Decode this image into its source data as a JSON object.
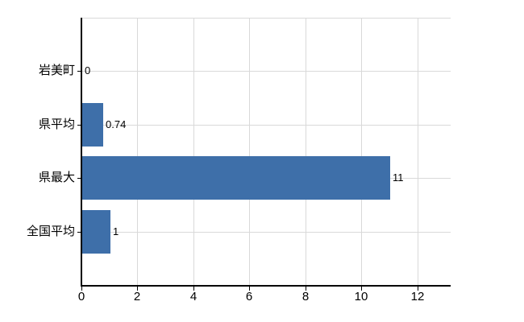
{
  "chart_data": {
    "type": "bar",
    "orientation": "horizontal",
    "title": "",
    "xlabel": "",
    "ylabel": "",
    "categories": [
      "岩美町",
      "県平均",
      "県最大",
      "全国平均"
    ],
    "values": [
      0,
      0.74,
      11,
      1
    ],
    "value_labels": [
      "0",
      "0.74",
      "11",
      "1"
    ],
    "xticks": [
      0,
      2,
      4,
      6,
      8,
      10,
      12
    ],
    "xtick_labels": [
      "0",
      "2",
      "4",
      "6",
      "8",
      "10",
      "12"
    ],
    "xlim": [
      0,
      13.18
    ],
    "grid": true,
    "legend": false,
    "colors": {
      "bar": "#3e6fa9",
      "grid": "#d9d9d9",
      "axis": "#000000",
      "text": "#000000",
      "background": "#ffffff"
    }
  }
}
